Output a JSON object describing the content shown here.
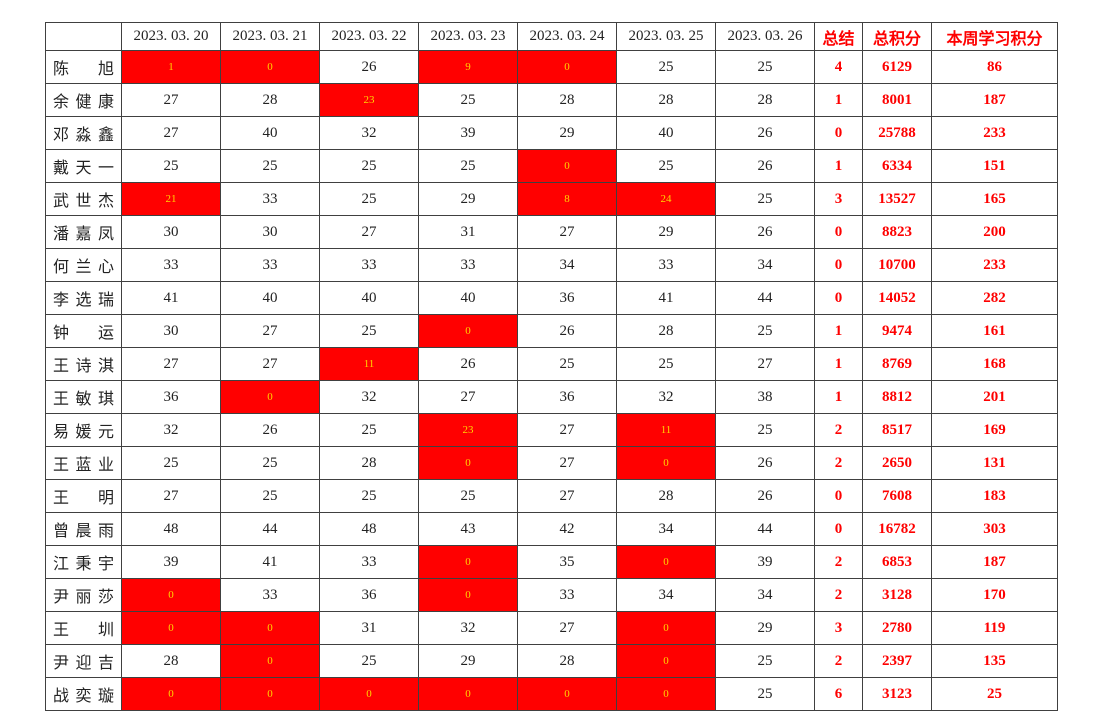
{
  "colors": {
    "highlight_bg": "#ff0000",
    "highlight_text": "#ffd400",
    "accent": "#fe0000",
    "grid": "#404040",
    "text": "#222222"
  },
  "table": {
    "columns": [
      {
        "label": "",
        "kind": "corner"
      },
      {
        "label": "2023. 03. 20",
        "kind": "date"
      },
      {
        "label": "2023. 03. 21",
        "kind": "date"
      },
      {
        "label": "2023. 03. 22",
        "kind": "date"
      },
      {
        "label": "2023. 03. 23",
        "kind": "date"
      },
      {
        "label": "2023. 03. 24",
        "kind": "date"
      },
      {
        "label": "2023. 03. 25",
        "kind": "date"
      },
      {
        "label": "2023. 03. 26",
        "kind": "date"
      },
      {
        "label": "总结",
        "kind": "summary"
      },
      {
        "label": "总积分",
        "kind": "summary"
      },
      {
        "label": "本周学习积分",
        "kind": "summary"
      }
    ],
    "rows": [
      {
        "name": "陈旭",
        "days": [
          {
            "v": "1",
            "hl": true
          },
          {
            "v": "0",
            "hl": true
          },
          {
            "v": "26",
            "hl": false
          },
          {
            "v": "9",
            "hl": true
          },
          {
            "v": "0",
            "hl": true
          },
          {
            "v": "25",
            "hl": false
          },
          {
            "v": "25",
            "hl": false
          }
        ],
        "summary": "4",
        "total": "6129",
        "week": "86"
      },
      {
        "name": "余健康",
        "days": [
          {
            "v": "27",
            "hl": false
          },
          {
            "v": "28",
            "hl": false
          },
          {
            "v": "23",
            "hl": true
          },
          {
            "v": "25",
            "hl": false
          },
          {
            "v": "28",
            "hl": false
          },
          {
            "v": "28",
            "hl": false
          },
          {
            "v": "28",
            "hl": false
          }
        ],
        "summary": "1",
        "total": "8001",
        "week": "187"
      },
      {
        "name": "邓淼鑫",
        "days": [
          {
            "v": "27",
            "hl": false
          },
          {
            "v": "40",
            "hl": false
          },
          {
            "v": "32",
            "hl": false
          },
          {
            "v": "39",
            "hl": false
          },
          {
            "v": "29",
            "hl": false
          },
          {
            "v": "40",
            "hl": false
          },
          {
            "v": "26",
            "hl": false
          }
        ],
        "summary": "0",
        "total": "25788",
        "week": "233"
      },
      {
        "name": "戴天一",
        "days": [
          {
            "v": "25",
            "hl": false
          },
          {
            "v": "25",
            "hl": false
          },
          {
            "v": "25",
            "hl": false
          },
          {
            "v": "25",
            "hl": false
          },
          {
            "v": "0",
            "hl": true
          },
          {
            "v": "25",
            "hl": false
          },
          {
            "v": "26",
            "hl": false
          }
        ],
        "summary": "1",
        "total": "6334",
        "week": "151"
      },
      {
        "name": "武世杰",
        "days": [
          {
            "v": "21",
            "hl": true
          },
          {
            "v": "33",
            "hl": false
          },
          {
            "v": "25",
            "hl": false
          },
          {
            "v": "29",
            "hl": false
          },
          {
            "v": "8",
            "hl": true
          },
          {
            "v": "24",
            "hl": true
          },
          {
            "v": "25",
            "hl": false
          }
        ],
        "summary": "3",
        "total": "13527",
        "week": "165"
      },
      {
        "name": "潘嘉凤",
        "days": [
          {
            "v": "30",
            "hl": false
          },
          {
            "v": "30",
            "hl": false
          },
          {
            "v": "27",
            "hl": false
          },
          {
            "v": "31",
            "hl": false
          },
          {
            "v": "27",
            "hl": false
          },
          {
            "v": "29",
            "hl": false
          },
          {
            "v": "26",
            "hl": false
          }
        ],
        "summary": "0",
        "total": "8823",
        "week": "200"
      },
      {
        "name": "何兰心",
        "days": [
          {
            "v": "33",
            "hl": false
          },
          {
            "v": "33",
            "hl": false
          },
          {
            "v": "33",
            "hl": false
          },
          {
            "v": "33",
            "hl": false
          },
          {
            "v": "34",
            "hl": false
          },
          {
            "v": "33",
            "hl": false
          },
          {
            "v": "34",
            "hl": false
          }
        ],
        "summary": "0",
        "total": "10700",
        "week": "233"
      },
      {
        "name": "李选瑞",
        "days": [
          {
            "v": "41",
            "hl": false
          },
          {
            "v": "40",
            "hl": false
          },
          {
            "v": "40",
            "hl": false
          },
          {
            "v": "40",
            "hl": false
          },
          {
            "v": "36",
            "hl": false
          },
          {
            "v": "41",
            "hl": false
          },
          {
            "v": "44",
            "hl": false
          }
        ],
        "summary": "0",
        "total": "14052",
        "week": "282"
      },
      {
        "name": "钟运",
        "days": [
          {
            "v": "30",
            "hl": false
          },
          {
            "v": "27",
            "hl": false
          },
          {
            "v": "25",
            "hl": false
          },
          {
            "v": "0",
            "hl": true
          },
          {
            "v": "26",
            "hl": false
          },
          {
            "v": "28",
            "hl": false
          },
          {
            "v": "25",
            "hl": false
          }
        ],
        "summary": "1",
        "total": "9474",
        "week": "161"
      },
      {
        "name": "王诗淇",
        "days": [
          {
            "v": "27",
            "hl": false
          },
          {
            "v": "27",
            "hl": false
          },
          {
            "v": "11",
            "hl": true
          },
          {
            "v": "26",
            "hl": false
          },
          {
            "v": "25",
            "hl": false
          },
          {
            "v": "25",
            "hl": false
          },
          {
            "v": "27",
            "hl": false
          }
        ],
        "summary": "1",
        "total": "8769",
        "week": "168"
      },
      {
        "name": "王敏琪",
        "days": [
          {
            "v": "36",
            "hl": false
          },
          {
            "v": "0",
            "hl": true
          },
          {
            "v": "32",
            "hl": false
          },
          {
            "v": "27",
            "hl": false
          },
          {
            "v": "36",
            "hl": false
          },
          {
            "v": "32",
            "hl": false
          },
          {
            "v": "38",
            "hl": false
          }
        ],
        "summary": "1",
        "total": "8812",
        "week": "201"
      },
      {
        "name": "易媛元",
        "days": [
          {
            "v": "32",
            "hl": false
          },
          {
            "v": "26",
            "hl": false
          },
          {
            "v": "25",
            "hl": false
          },
          {
            "v": "23",
            "hl": true
          },
          {
            "v": "27",
            "hl": false
          },
          {
            "v": "11",
            "hl": true
          },
          {
            "v": "25",
            "hl": false
          }
        ],
        "summary": "2",
        "total": "8517",
        "week": "169"
      },
      {
        "name": "王蓝业",
        "days": [
          {
            "v": "25",
            "hl": false
          },
          {
            "v": "25",
            "hl": false
          },
          {
            "v": "28",
            "hl": false
          },
          {
            "v": "0",
            "hl": true
          },
          {
            "v": "27",
            "hl": false
          },
          {
            "v": "0",
            "hl": true
          },
          {
            "v": "26",
            "hl": false
          }
        ],
        "summary": "2",
        "total": "2650",
        "week": "131"
      },
      {
        "name": "王明",
        "days": [
          {
            "v": "27",
            "hl": false
          },
          {
            "v": "25",
            "hl": false
          },
          {
            "v": "25",
            "hl": false
          },
          {
            "v": "25",
            "hl": false
          },
          {
            "v": "27",
            "hl": false
          },
          {
            "v": "28",
            "hl": false
          },
          {
            "v": "26",
            "hl": false
          }
        ],
        "summary": "0",
        "total": "7608",
        "week": "183"
      },
      {
        "name": "曾晨雨",
        "days": [
          {
            "v": "48",
            "hl": false
          },
          {
            "v": "44",
            "hl": false
          },
          {
            "v": "48",
            "hl": false
          },
          {
            "v": "43",
            "hl": false
          },
          {
            "v": "42",
            "hl": false
          },
          {
            "v": "34",
            "hl": false
          },
          {
            "v": "44",
            "hl": false
          }
        ],
        "summary": "0",
        "total": "16782",
        "week": "303"
      },
      {
        "name": "江秉宇",
        "days": [
          {
            "v": "39",
            "hl": false
          },
          {
            "v": "41",
            "hl": false
          },
          {
            "v": "33",
            "hl": false
          },
          {
            "v": "0",
            "hl": true
          },
          {
            "v": "35",
            "hl": false
          },
          {
            "v": "0",
            "hl": true
          },
          {
            "v": "39",
            "hl": false
          }
        ],
        "summary": "2",
        "total": "6853",
        "week": "187"
      },
      {
        "name": "尹丽莎",
        "days": [
          {
            "v": "0",
            "hl": true
          },
          {
            "v": "33",
            "hl": false
          },
          {
            "v": "36",
            "hl": false
          },
          {
            "v": "0",
            "hl": true
          },
          {
            "v": "33",
            "hl": false
          },
          {
            "v": "34",
            "hl": false
          },
          {
            "v": "34",
            "hl": false
          }
        ],
        "summary": "2",
        "total": "3128",
        "week": "170"
      },
      {
        "name": "王圳",
        "days": [
          {
            "v": "0",
            "hl": true
          },
          {
            "v": "0",
            "hl": true
          },
          {
            "v": "31",
            "hl": false
          },
          {
            "v": "32",
            "hl": false
          },
          {
            "v": "27",
            "hl": false
          },
          {
            "v": "0",
            "hl": true
          },
          {
            "v": "29",
            "hl": false
          }
        ],
        "summary": "3",
        "total": "2780",
        "week": "119"
      },
      {
        "name": "尹迎吉",
        "days": [
          {
            "v": "28",
            "hl": false
          },
          {
            "v": "0",
            "hl": true
          },
          {
            "v": "25",
            "hl": false
          },
          {
            "v": "29",
            "hl": false
          },
          {
            "v": "28",
            "hl": false
          },
          {
            "v": "0",
            "hl": true
          },
          {
            "v": "25",
            "hl": false
          }
        ],
        "summary": "2",
        "total": "2397",
        "week": "135"
      },
      {
        "name": "战奕璇",
        "days": [
          {
            "v": "0",
            "hl": true
          },
          {
            "v": "0",
            "hl": true
          },
          {
            "v": "0",
            "hl": true
          },
          {
            "v": "0",
            "hl": true
          },
          {
            "v": "0",
            "hl": true
          },
          {
            "v": "0",
            "hl": true
          },
          {
            "v": "25",
            "hl": false
          }
        ],
        "summary": "6",
        "total": "3123",
        "week": "25"
      }
    ]
  }
}
